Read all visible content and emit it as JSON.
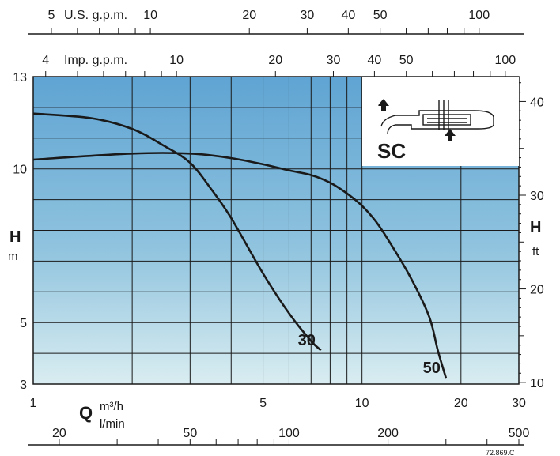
{
  "chart_data": {
    "type": "line",
    "x_scale": "log",
    "xlim": [
      1,
      30
    ],
    "ylim": [
      3,
      13
    ],
    "xlabel": "Q",
    "x_units": [
      "m³/h",
      "l/min"
    ],
    "ylabel_left": {
      "symbol": "H",
      "unit": "m"
    },
    "ylabel_right": {
      "symbol": "H",
      "unit": "ft"
    },
    "top_axis_usgpm": {
      "label": "U.S. g.p.m.",
      "ticks": [
        "5",
        "10",
        "20",
        "30",
        "40",
        "50",
        "100"
      ],
      "values": [
        5,
        10,
        20,
        30,
        40,
        50,
        100
      ]
    },
    "top_axis_impgpm": {
      "label": "Imp. g.p.m.",
      "ticks": [
        "4",
        "10",
        "20",
        "30",
        "40",
        "50",
        "100"
      ],
      "values": [
        4,
        10,
        20,
        30,
        40,
        50,
        100
      ]
    },
    "bottom_axis_m3h": {
      "ticks": [
        "1",
        "5",
        "10",
        "20",
        "30"
      ],
      "values": [
        1,
        5,
        10,
        20,
        30
      ]
    },
    "bottom_axis_lmin": {
      "ticks": [
        "20",
        "50",
        "100",
        "200",
        "500"
      ],
      "values": [
        20,
        50,
        100,
        200,
        500
      ]
    },
    "left_ticks": {
      "ticks": [
        "3",
        "5",
        "10",
        "13"
      ],
      "values": [
        3,
        5,
        10,
        13
      ]
    },
    "right_ticks": {
      "ticks": [
        "10",
        "20",
        "30",
        "40"
      ],
      "values": [
        10,
        20,
        30,
        40
      ]
    },
    "series": [
      {
        "name": "30",
        "points": [
          [
            1,
            11.8
          ],
          [
            1.5,
            11.65
          ],
          [
            2,
            11.3
          ],
          [
            2.5,
            10.75
          ],
          [
            3,
            10.2
          ],
          [
            3.5,
            9.3
          ],
          [
            4,
            8.4
          ],
          [
            5,
            6.6
          ],
          [
            6,
            5.3
          ],
          [
            7,
            4.4
          ],
          [
            7.5,
            4.1
          ]
        ]
      },
      {
        "name": "50",
        "points": [
          [
            1,
            10.3
          ],
          [
            2,
            10.5
          ],
          [
            3,
            10.5
          ],
          [
            4,
            10.35
          ],
          [
            5,
            10.15
          ],
          [
            6,
            9.95
          ],
          [
            7,
            9.8
          ],
          [
            8,
            9.55
          ],
          [
            9,
            9.2
          ],
          [
            10,
            8.8
          ],
          [
            11,
            8.3
          ],
          [
            12,
            7.7
          ],
          [
            14,
            6.5
          ],
          [
            16,
            5.2
          ],
          [
            17,
            4.1
          ],
          [
            18,
            3.2
          ]
        ]
      }
    ],
    "pump": {
      "label": "SC"
    },
    "code": "72.869.C",
    "grid": true,
    "legend": "none"
  }
}
